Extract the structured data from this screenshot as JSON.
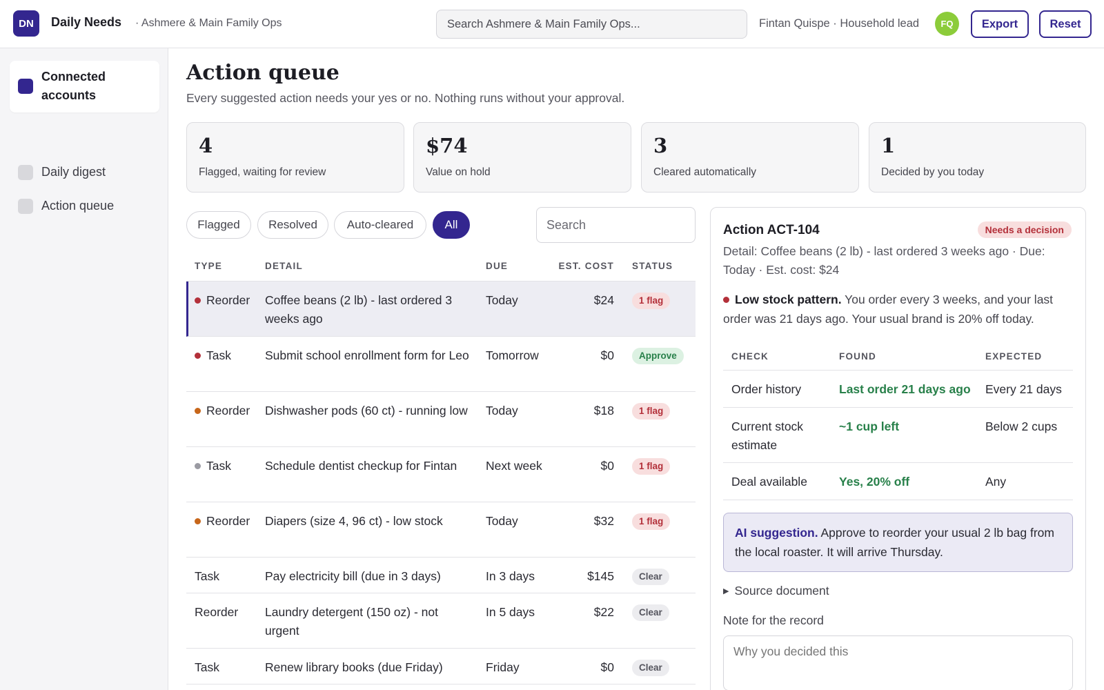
{
  "app": {
    "logo_initials": "DN",
    "title": "Daily Needs",
    "workspace": "· Ashmere & Main Family Ops",
    "search_placeholder": "Search Ashmere & Main Family Ops...",
    "user_label": "Fintan Quispe · Household lead",
    "avatar_initials": "FQ",
    "export_label": "Export",
    "reset_label": "Reset"
  },
  "sidebar": {
    "items": [
      {
        "label": "Connected accounts",
        "active": true
      },
      {
        "label": "Daily digest",
        "active": false
      },
      {
        "label": "Action queue",
        "active": false
      }
    ]
  },
  "page": {
    "title": "Action queue",
    "subtitle": "Every suggested action needs your yes or no. Nothing runs without your approval."
  },
  "stats": [
    {
      "value": "4",
      "caption": "Flagged, waiting for review"
    },
    {
      "value": "$74",
      "caption": "Value on hold"
    },
    {
      "value": "3",
      "caption": "Cleared automatically"
    },
    {
      "value": "1",
      "caption": "Decided by you today"
    }
  ],
  "filters": {
    "chips": [
      "Flagged",
      "Resolved",
      "Auto-cleared",
      "All"
    ],
    "active": "All",
    "search_placeholder": "Search"
  },
  "table": {
    "headers": {
      "type": "TYPE",
      "detail": "DETAIL",
      "due": "DUE",
      "cost": "EST. COST",
      "status": "STATUS"
    },
    "rows": [
      {
        "type": "Reorder",
        "dot": "red",
        "detail": "Coffee beans (2 lb) - last ordered 3 weeks ago",
        "due": "Today",
        "cost": "$24",
        "status": "1 flag",
        "status_kind": "flag",
        "selected": true
      },
      {
        "type": "Task",
        "dot": "red",
        "detail": "Submit school enrollment form for Leo",
        "due": "Tomorrow",
        "cost": "$0",
        "status": "Approve",
        "status_kind": "approve"
      },
      {
        "type": "Reorder",
        "dot": "orange",
        "detail": "Dishwasher pods (60 ct) - running low",
        "due": "Today",
        "cost": "$18",
        "status": "1 flag",
        "status_kind": "flag"
      },
      {
        "type": "Task",
        "dot": "gray",
        "detail": "Schedule dentist checkup for Fintan",
        "due": "Next week",
        "cost": "$0",
        "status": "1 flag",
        "status_kind": "flag"
      },
      {
        "type": "Reorder",
        "dot": "orange",
        "detail": "Diapers (size 4, 96 ct) - low stock",
        "due": "Today",
        "cost": "$32",
        "status": "1 flag",
        "status_kind": "flag"
      },
      {
        "type": "Task",
        "dot": "",
        "detail": "Pay electricity bill (due in 3 days)",
        "due": "In 3 days",
        "cost": "$145",
        "status": "Clear",
        "status_kind": "clear"
      },
      {
        "type": "Reorder",
        "dot": "",
        "detail": "Laundry detergent (150 oz) - not urgent",
        "due": "In 5 days",
        "cost": "$22",
        "status": "Clear",
        "status_kind": "clear"
      },
      {
        "type": "Task",
        "dot": "",
        "detail": "Renew library books (due Friday)",
        "due": "Friday",
        "cost": "$0",
        "status": "Clear",
        "status_kind": "clear"
      }
    ]
  },
  "panel": {
    "title": "Action ACT-104",
    "badge": "Needs a decision",
    "detail": "Detail: Coffee beans (2 lb) - last ordered 3 weeks ago · Due: Today · Est. cost: $24",
    "pattern_title": "Low stock pattern.",
    "pattern_text": " You order every 3 weeks, and your last order was 21 days ago. Your usual brand is 20% off today.",
    "checks": {
      "headers": {
        "check": "CHECK",
        "found": "FOUND",
        "expected": "EXPECTED"
      },
      "rows": [
        {
          "check": "Order history",
          "found": "Last order 21 days ago",
          "expected": "Every 21 days"
        },
        {
          "check": "Current stock estimate",
          "found": "~1 cup left",
          "expected": "Below 2 cups"
        },
        {
          "check": "Deal available",
          "found": "Yes, 20% off",
          "expected": "Any"
        }
      ]
    },
    "ai_title": "AI suggestion.",
    "ai_text": " Approve to reorder your usual 2 lb bag from the local roaster. It will arrive Thursday.",
    "source_label": "Source document",
    "note_label": "Note for the record",
    "note_placeholder": "Why you decided this"
  },
  "colors": {
    "accent": "#33268f",
    "flag": "#b3303a",
    "approve": "#28804a",
    "warning_dot": "#c7661a",
    "avatar": "#8ccc3a"
  }
}
